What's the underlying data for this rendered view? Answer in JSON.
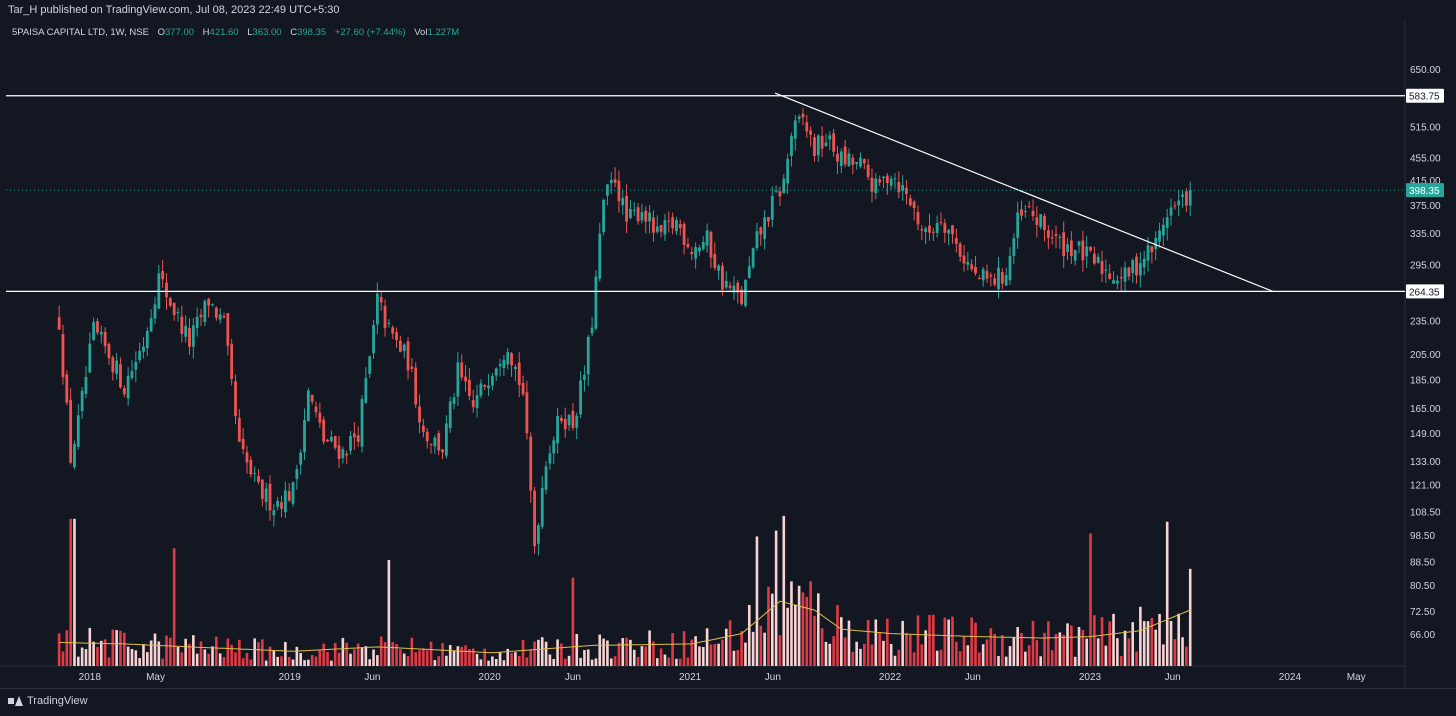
{
  "header": {
    "publisher_line": "Tar_H published on TradingView.com, Jul 08, 2023 22:49 UTC+5:30"
  },
  "legend": {
    "symbol": "5PAISA CAPITAL LTD, 1W, NSE",
    "o_label": "O",
    "o_value": "377.00",
    "h_label": "H",
    "h_value": "421.60",
    "l_label": "L",
    "l_value": "363.00",
    "c_label": "C",
    "c_value": "398.35",
    "change": "+27.60 (+7.44%)",
    "vol_label": "Vol",
    "vol_value": "1.227M"
  },
  "footer": {
    "brand": "TradingView"
  },
  "colors": {
    "background": "#131722",
    "up": "#26a69a",
    "down": "#ef5350",
    "vol_up": "#f7d3d3",
    "vol_down": "#e03a45",
    "vol_ma": "#e0c04a",
    "lines": "#ffffff",
    "grid": "#2a2e39"
  },
  "chart_data": {
    "type": "candlestick",
    "scale": "log",
    "ylim": [
      58,
      790
    ],
    "y_ticks": [
      "66.00",
      "72.50",
      "80.50",
      "88.50",
      "98.50",
      "108.50",
      "121.00",
      "133.00",
      "149.00",
      "165.00",
      "185.00",
      "205.00",
      "235.00",
      "295.00",
      "335.00",
      "375.00",
      "415.00",
      "455.00",
      "515.00",
      "650.00"
    ],
    "x_ticks": [
      "2018",
      "May",
      "2019",
      "Jun",
      "2020",
      "Jun",
      "2021",
      "Jun",
      "2022",
      "Jun",
      "2023",
      "Jun",
      "2024",
      "May"
    ],
    "x_tick_dates": [
      "2018-01-01",
      "2018-05-01",
      "2019-01-01",
      "2019-06-01",
      "2020-01-01",
      "2020-06-01",
      "2021-01-01",
      "2021-06-01",
      "2022-01-01",
      "2022-06-01",
      "2023-01-01",
      "2023-06-01",
      "2024-01-01",
      "2024-05-01"
    ],
    "x_range": [
      "2017-08-01",
      "2024-07-20"
    ],
    "price_labels": [
      {
        "text": "583.75",
        "value": 583.75,
        "style": "line"
      },
      {
        "text": "398.35",
        "value": 398.35,
        "style": "current"
      },
      {
        "text": "264.35",
        "value": 264.35,
        "style": "line"
      }
    ],
    "horizontal_lines": [
      583.75,
      264.35
    ],
    "current_price": 398.35,
    "trendline": {
      "start": [
        "2021-06-05",
        590
      ],
      "end": [
        "2023-12-01",
        264.35
      ]
    },
    "close_path": [
      [
        "2017-11-06",
        235
      ],
      [
        "2017-11-27",
        135
      ],
      [
        "2017-12-11",
        155
      ],
      [
        "2018-01-08",
        225
      ],
      [
        "2018-02-05",
        205
      ],
      [
        "2018-03-05",
        180
      ],
      [
        "2018-04-09",
        215
      ],
      [
        "2018-05-07",
        280
      ],
      [
        "2018-06-04",
        245
      ],
      [
        "2018-07-02",
        215
      ],
      [
        "2018-08-06",
        255
      ],
      [
        "2018-09-03",
        230
      ],
      [
        "2018-10-01",
        140
      ],
      [
        "2018-11-05",
        118
      ],
      [
        "2018-12-03",
        112
      ],
      [
        "2019-01-07",
        118
      ],
      [
        "2019-02-04",
        175
      ],
      [
        "2019-03-04",
        145
      ],
      [
        "2019-04-08",
        138
      ],
      [
        "2019-05-06",
        150
      ],
      [
        "2019-05-27",
        200
      ],
      [
        "2019-06-10",
        255
      ],
      [
        "2019-07-01",
        225
      ],
      [
        "2019-08-05",
        200
      ],
      [
        "2019-09-02",
        150
      ],
      [
        "2019-10-07",
        140
      ],
      [
        "2019-11-04",
        190
      ],
      [
        "2019-12-02",
        165
      ],
      [
        "2020-01-06",
        195
      ],
      [
        "2020-02-03",
        215
      ],
      [
        "2020-03-02",
        175
      ],
      [
        "2020-03-23",
        95
      ],
      [
        "2020-04-13",
        135
      ],
      [
        "2020-05-11",
        160
      ],
      [
        "2020-06-01",
        155
      ],
      [
        "2020-06-22",
        190
      ],
      [
        "2020-07-06",
        235
      ],
      [
        "2020-07-27",
        380
      ],
      [
        "2020-08-17",
        420
      ],
      [
        "2020-09-07",
        350
      ],
      [
        "2020-10-05",
        370
      ],
      [
        "2020-11-02",
        330
      ],
      [
        "2020-12-07",
        350
      ],
      [
        "2021-01-04",
        315
      ],
      [
        "2021-02-01",
        325
      ],
      [
        "2021-03-01",
        275
      ],
      [
        "2021-04-05",
        255
      ],
      [
        "2021-05-03",
        325
      ],
      [
        "2021-05-31",
        375
      ],
      [
        "2021-06-21",
        410
      ],
      [
        "2021-07-05",
        500
      ],
      [
        "2021-07-26",
        530
      ],
      [
        "2021-08-16",
        470
      ],
      [
        "2021-09-06",
        490
      ],
      [
        "2021-10-04",
        450
      ],
      [
        "2021-11-08",
        440
      ],
      [
        "2021-12-06",
        400
      ],
      [
        "2022-01-03",
        430
      ],
      [
        "2022-02-07",
        380
      ],
      [
        "2022-03-07",
        330
      ],
      [
        "2022-04-04",
        360
      ],
      [
        "2022-05-02",
        320
      ],
      [
        "2022-06-06",
        280
      ],
      [
        "2022-07-04",
        275
      ],
      [
        "2022-08-01",
        285
      ],
      [
        "2022-08-22",
        350
      ],
      [
        "2022-09-12",
        365
      ],
      [
        "2022-10-10",
        340
      ],
      [
        "2022-11-07",
        320
      ],
      [
        "2022-12-05",
        315
      ],
      [
        "2023-01-02",
        300
      ],
      [
        "2023-02-06",
        285
      ],
      [
        "2023-03-06",
        280
      ],
      [
        "2023-04-03",
        300
      ],
      [
        "2023-05-01",
        320
      ],
      [
        "2023-05-22",
        365
      ],
      [
        "2023-06-19",
        380
      ],
      [
        "2023-07-03",
        398.35
      ]
    ],
    "volume_ma_path": [
      [
        "2017-11-06",
        0.16
      ],
      [
        "2018-03-05",
        0.15
      ],
      [
        "2018-07-02",
        0.13
      ],
      [
        "2019-01-07",
        0.1
      ],
      [
        "2019-06-10",
        0.13
      ],
      [
        "2020-01-06",
        0.09
      ],
      [
        "2020-07-06",
        0.14
      ],
      [
        "2021-01-04",
        0.15
      ],
      [
        "2021-04-05",
        0.22
      ],
      [
        "2021-06-14",
        0.44
      ],
      [
        "2021-08-16",
        0.38
      ],
      [
        "2021-10-04",
        0.25
      ],
      [
        "2022-01-03",
        0.22
      ],
      [
        "2022-06-06",
        0.2
      ],
      [
        "2022-10-10",
        0.19
      ],
      [
        "2023-01-02",
        0.2
      ],
      [
        "2023-04-03",
        0.24
      ],
      [
        "2023-07-03",
        0.38
      ]
    ],
    "volume_spikes": [
      [
        "2017-11-27",
        1.0
      ],
      [
        "2017-12-04",
        1.0
      ],
      [
        "2018-06-04",
        0.8
      ],
      [
        "2019-07-01",
        0.72
      ],
      [
        "2020-06-01",
        0.6
      ],
      [
        "2021-05-03",
        0.88
      ],
      [
        "2021-06-07",
        0.92
      ],
      [
        "2021-06-21",
        1.02
      ],
      [
        "2023-01-02",
        0.9
      ],
      [
        "2023-05-22",
        0.98
      ],
      [
        "2023-07-03",
        0.66
      ]
    ]
  }
}
